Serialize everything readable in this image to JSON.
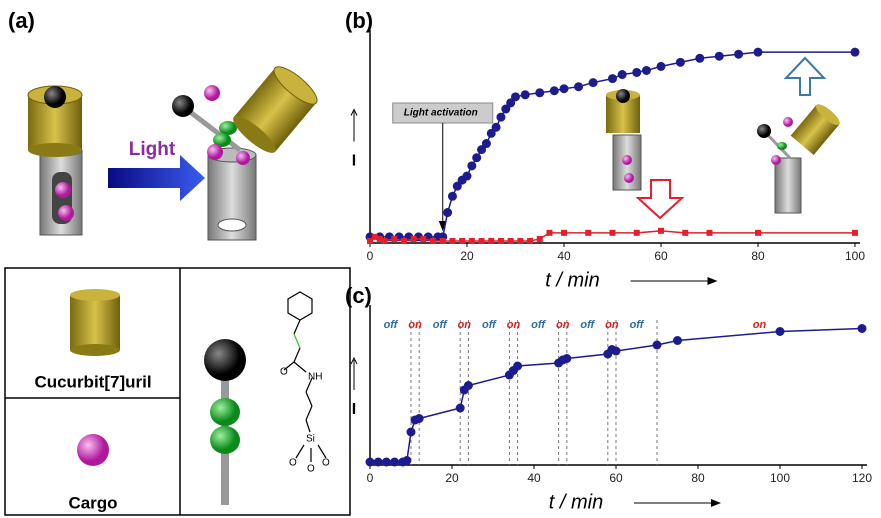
{
  "panel_a": {
    "label": "(a)",
    "arrow_text": "Light",
    "legend": [
      "Cucurbit[7]uril",
      "Cargo"
    ],
    "atoms": [
      "O",
      "NH",
      "Si",
      "O",
      "O",
      "O"
    ]
  },
  "chart_data": [
    {
      "type": "line",
      "panel_label": "(b)",
      "x_label": "t / min",
      "y_label": "I",
      "annotation": "Light activation",
      "annotation_x": 15,
      "xlim": [
        0,
        100
      ],
      "xticks": [
        0,
        20,
        40,
        60,
        80,
        100
      ],
      "ylim": [
        0,
        100
      ],
      "series": [
        {
          "color": "#1c1c8f",
          "marker": "circle",
          "x": [
            0,
            2,
            4,
            6,
            8,
            10,
            12,
            14,
            15,
            16,
            17,
            18,
            19,
            20,
            21,
            22,
            23,
            24,
            25,
            26,
            27,
            28,
            29,
            30,
            32,
            35,
            38,
            40,
            43,
            46,
            50,
            52,
            55,
            57,
            60,
            64,
            68,
            72,
            76,
            80,
            100
          ],
          "values": [
            3,
            3,
            3,
            3,
            3,
            3,
            3,
            3,
            3,
            15,
            23,
            28,
            31,
            33,
            38,
            42,
            46,
            49,
            54,
            57,
            62,
            66,
            69,
            72,
            73,
            74,
            75,
            76,
            77,
            79,
            81,
            83,
            84,
            85,
            87,
            89,
            91,
            92,
            93,
            94,
            94
          ]
        },
        {
          "color": "#e3202c",
          "marker": "square",
          "x": [
            0,
            1,
            2,
            3,
            5,
            7,
            9,
            11,
            13,
            15,
            17,
            19,
            21,
            23,
            25,
            27,
            29,
            31,
            33,
            35,
            37,
            40,
            45,
            50,
            55,
            60,
            65,
            70,
            80,
            100
          ],
          "values": [
            1,
            3,
            2,
            1,
            2,
            1,
            2,
            2,
            1,
            1,
            1,
            1,
            1,
            1,
            1,
            1,
            1,
            1,
            1,
            2,
            5,
            5,
            5,
            5,
            5,
            6,
            5,
            5,
            5,
            5
          ]
        }
      ]
    },
    {
      "type": "line",
      "panel_label": "(c)",
      "x_label": "t / min",
      "y_label": "I",
      "xlim": [
        0,
        120
      ],
      "xticks": [
        0,
        20,
        40,
        60,
        80,
        100,
        120
      ],
      "ylim": [
        0,
        100
      ],
      "switch_x": [
        10,
        12,
        22,
        24,
        34,
        36,
        46,
        48,
        58,
        60,
        70
      ],
      "annotations": [
        {
          "text": "off",
          "color": "#2d6aa8"
        },
        {
          "text": "on",
          "color": "#d62020"
        },
        {
          "text": "off",
          "color": "#2d6aa8"
        },
        {
          "text": "on",
          "color": "#d62020"
        },
        {
          "text": "off",
          "color": "#2d6aa8"
        },
        {
          "text": "on",
          "color": "#d62020"
        },
        {
          "text": "off",
          "color": "#2d6aa8"
        },
        {
          "text": "on",
          "color": "#d62020"
        },
        {
          "text": "off",
          "color": "#2d6aa8"
        },
        {
          "text": "on",
          "color": "#d62020"
        },
        {
          "text": "off",
          "color": "#2d6aa8"
        },
        {
          "text": "on",
          "color": "#d62020"
        }
      ],
      "series": [
        {
          "color": "#1c1c8f",
          "marker": "circle",
          "x": [
            0,
            2,
            4,
            6,
            8,
            9,
            10,
            11,
            12,
            22,
            23,
            24,
            34,
            35,
            36,
            46,
            47,
            48,
            58,
            59,
            60,
            70,
            75,
            100,
            120
          ],
          "values": [
            2,
            2,
            2,
            2,
            2,
            3,
            22,
            30,
            31,
            38,
            50,
            53,
            60,
            63,
            66,
            68,
            70,
            71,
            74,
            77,
            76,
            80,
            83,
            89,
            91
          ]
        }
      ]
    }
  ]
}
